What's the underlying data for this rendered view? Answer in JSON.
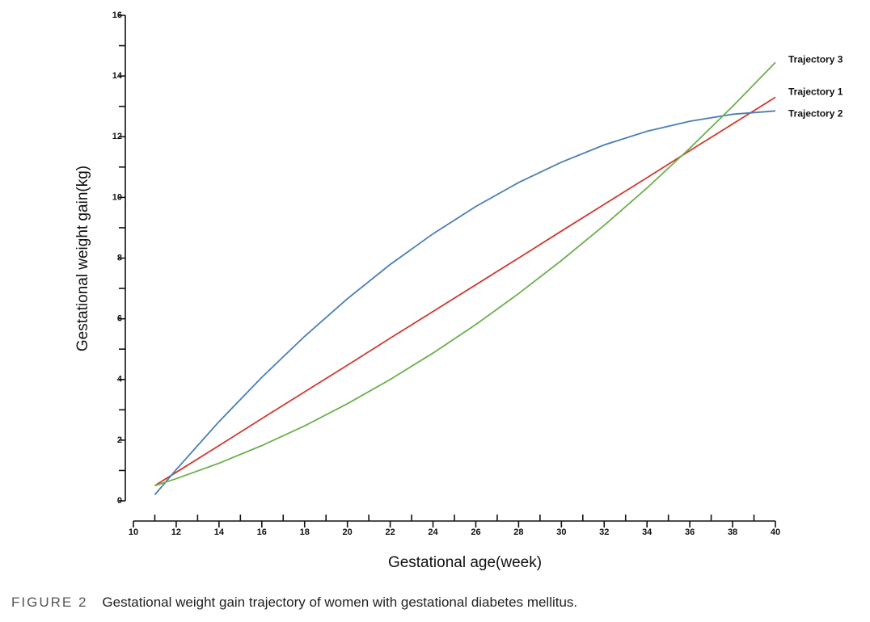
{
  "chart_data": {
    "type": "line",
    "x_label": "Gestational age(week)",
    "y_label": "Gestational weight gain(kg)",
    "x": [
      11,
      12,
      14,
      16,
      18,
      20,
      22,
      24,
      26,
      28,
      30,
      32,
      34,
      36,
      38,
      40
    ],
    "series": [
      {
        "name": "Trajectory 1",
        "color": "#d03a2f",
        "values": [
          0.5,
          0.94,
          1.82,
          2.71,
          3.59,
          4.47,
          5.36,
          6.24,
          7.12,
          8.0,
          8.89,
          9.77,
          10.65,
          11.54,
          12.42,
          13.3
        ]
      },
      {
        "name": "Trajectory 2",
        "color": "#4a7fb5",
        "values": [
          0.2,
          1.03,
          2.61,
          4.07,
          5.42,
          6.66,
          7.79,
          8.8,
          9.7,
          10.49,
          11.16,
          11.73,
          12.18,
          12.51,
          12.74,
          12.85
        ]
      },
      {
        "name": "Trajectory 3",
        "color": "#6ab04c",
        "values": [
          0.5,
          0.73,
          1.24,
          1.82,
          2.47,
          3.2,
          4.0,
          4.87,
          5.81,
          6.83,
          7.92,
          9.08,
          10.31,
          11.62,
          13.0,
          14.45
        ]
      }
    ],
    "xlim": [
      10,
      40
    ],
    "xticks": [
      10,
      12,
      14,
      16,
      18,
      20,
      22,
      24,
      26,
      28,
      30,
      32,
      34,
      36,
      38,
      40
    ],
    "x_minor_ticks": [
      11,
      13,
      15,
      17,
      19,
      21,
      23,
      25,
      27,
      29,
      31,
      33,
      35,
      37,
      39
    ],
    "ylim": [
      0,
      16
    ],
    "yticks": [
      0,
      2,
      4,
      6,
      8,
      10,
      12,
      14,
      16
    ],
    "y_minor_ticks": [
      1,
      3,
      5,
      7,
      9,
      11,
      13,
      15
    ],
    "legend": "line-end",
    "grid": false
  },
  "caption": {
    "label": "FIGURE 2",
    "text": "Gestational weight gain trajectory of women with gestational diabetes mellitus."
  }
}
